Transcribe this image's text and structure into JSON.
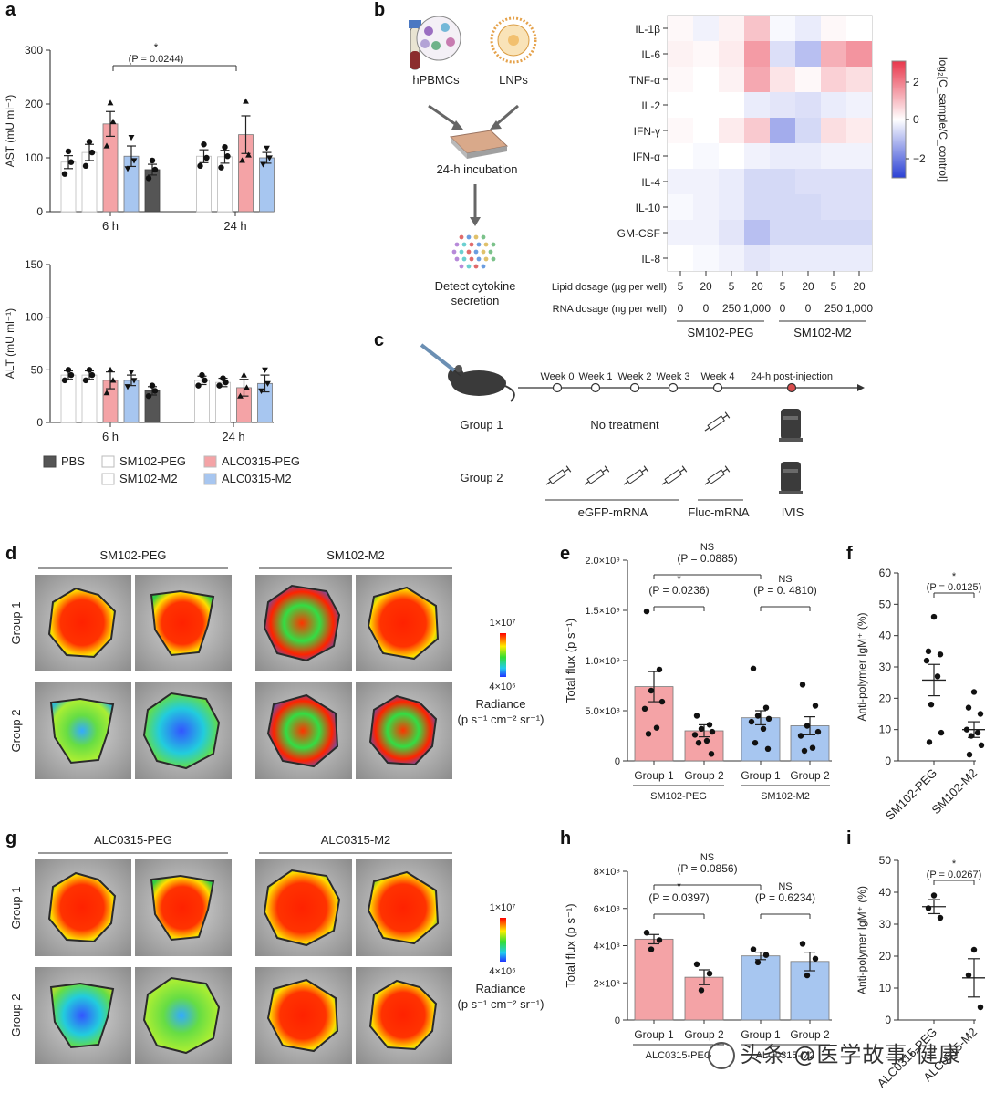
{
  "panel_labels": [
    "a",
    "b",
    "c",
    "d",
    "e",
    "f",
    "g",
    "h",
    "i"
  ],
  "colors": {
    "PBS": "#555555",
    "SM102": "#ffffff",
    "ALC0315-PEG": "#f4a3a6",
    "ALC0315-M2": "#a7c6f0",
    "heat_pos": "#e8364b",
    "heat_neg": "#2a3fd4"
  },
  "panel_a": {
    "legend": [
      {
        "name": "PBS",
        "color": "#555555"
      },
      {
        "name": "SM102-PEG",
        "color": "#ffffff"
      },
      {
        "name": "ALC0315-PEG",
        "color": "#f4a3a6"
      },
      {
        "name": "SM102-M2",
        "color": "#ffffff"
      },
      {
        "name": "ALC0315-M2",
        "color": "#a7c6f0"
      }
    ]
  },
  "chart_data": [
    {
      "id": "a-ast",
      "type": "bar",
      "ylabel": "AST (mU ml⁻¹)",
      "ylim": [
        0,
        300
      ],
      "yticks": [
        "0",
        "100",
        "200",
        "300"
      ],
      "categories": [
        "6 h",
        "24 h"
      ],
      "annotation": {
        "star": "*",
        "p": "(P = 0.0244)"
      },
      "groups": [
        {
          "label": "6 h",
          "bars": [
            {
              "series": "SM102-PEG",
              "value": 92,
              "err": 12,
              "points": [
                70,
                92,
                112
              ]
            },
            {
              "series": "SM102-M2",
              "value": 110,
              "err": 15,
              "points": [
                85,
                110,
                130
              ]
            },
            {
              "series": "ALC0315-PEG",
              "value": 163,
              "err": 23,
              "points": [
                122,
                167,
                202
              ]
            },
            {
              "series": "ALC0315-M2",
              "value": 103,
              "err": 19,
              "points": [
                80,
                95,
                138
              ]
            },
            {
              "series": "PBS",
              "value": 78,
              "err": 10,
              "points": [
                62,
                78,
                95
              ]
            }
          ]
        },
        {
          "label": "24 h",
          "bars": [
            {
              "series": "SM102-PEG",
              "value": 103,
              "err": 12,
              "points": [
                85,
                100,
                125
              ]
            },
            {
              "series": "SM102-M2",
              "value": 102,
              "err": 12,
              "points": [
                82,
                103,
                120
              ]
            },
            {
              "series": "ALC0315-PEG",
              "value": 143,
              "err": 35,
              "points": [
                95,
                105,
                205
              ]
            },
            {
              "series": "ALC0315-M2",
              "value": 100,
              "err": 10,
              "points": [
                88,
                100,
                118
              ]
            }
          ]
        }
      ]
    },
    {
      "id": "a-alt",
      "type": "bar",
      "ylabel": "ALT (mU ml⁻¹)",
      "ylim": [
        0,
        150
      ],
      "yticks": [
        "0",
        "50",
        "100",
        "150"
      ],
      "categories": [
        "6 h",
        "24 h"
      ],
      "groups": [
        {
          "label": "6 h",
          "bars": [
            {
              "series": "SM102-PEG",
              "value": 45,
              "err": 4,
              "points": [
                40,
                45,
                50
              ]
            },
            {
              "series": "SM102-M2",
              "value": 45,
              "err": 4,
              "points": [
                40,
                45,
                50
              ]
            },
            {
              "series": "ALC0315-PEG",
              "value": 40,
              "err": 8,
              "points": [
                28,
                40,
                50
              ]
            },
            {
              "series": "ALC0315-M2",
              "value": 40,
              "err": 5,
              "points": [
                34,
                40,
                48
              ]
            },
            {
              "series": "PBS",
              "value": 30,
              "err": 4,
              "points": [
                25,
                30,
                35
              ]
            }
          ]
        },
        {
          "label": "24 h",
          "bars": [
            {
              "series": "SM102-PEG",
              "value": 40,
              "err": 4,
              "points": [
                35,
                40,
                45
              ]
            },
            {
              "series": "SM102-M2",
              "value": 38,
              "err": 4,
              "points": [
                35,
                38,
                42
              ]
            },
            {
              "series": "ALC0315-PEG",
              "value": 33,
              "err": 8,
              "points": [
                25,
                33,
                45
              ]
            },
            {
              "series": "ALC0315-M2",
              "value": 37,
              "err": 8,
              "points": [
                30,
                37,
                50
              ]
            }
          ]
        }
      ]
    },
    {
      "id": "b-heatmap",
      "type": "heatmap",
      "rows": [
        "IL-1β",
        "IL-6",
        "TNF-α",
        "IL-2",
        "IFN-γ",
        "IFN-α",
        "IL-4",
        "IL-10",
        "GM-CSF",
        "IL-8"
      ],
      "lipid_label": "Lipid dosage (µg per well)",
      "rna_label": "RNA dosage (ng per well)",
      "lipid_dosage": [
        "5",
        "20",
        "5",
        "20",
        "5",
        "20",
        "5",
        "20"
      ],
      "rna_dosage": [
        "0",
        "0",
        "250",
        "1,000",
        "0",
        "0",
        "250",
        "1,000"
      ],
      "groups": [
        "SM102-PEG",
        "SM102-M2"
      ],
      "colorbar_ticks": [
        "2",
        "0",
        "−2"
      ],
      "colorbar_label": "log₂[C_sample/C_control]",
      "values": [
        [
          0.1,
          -0.2,
          0.2,
          0.9,
          -0.1,
          -0.3,
          0.1,
          0.0
        ],
        [
          0.2,
          0.1,
          0.3,
          1.5,
          -0.5,
          -1.0,
          1.2,
          1.6
        ],
        [
          0.1,
          0.0,
          0.2,
          1.3,
          0.4,
          0.1,
          0.7,
          0.5
        ],
        [
          0.0,
          0.0,
          0.0,
          -0.3,
          -0.4,
          -0.5,
          -0.3,
          -0.2
        ],
        [
          0.1,
          0.0,
          0.3,
          0.8,
          -1.3,
          -0.6,
          0.5,
          0.3
        ],
        [
          0.0,
          -0.1,
          0.0,
          -0.2,
          -0.3,
          -0.3,
          -0.2,
          -0.2
        ],
        [
          -0.2,
          -0.2,
          -0.3,
          -0.6,
          -0.6,
          -0.5,
          -0.5,
          -0.5
        ],
        [
          -0.1,
          -0.2,
          -0.3,
          -0.6,
          -0.6,
          -0.6,
          -0.5,
          -0.5
        ],
        [
          -0.2,
          -0.2,
          -0.4,
          -1.0,
          -0.6,
          -0.6,
          -0.6,
          -0.6
        ],
        [
          0.0,
          -0.1,
          -0.2,
          -0.4,
          -0.3,
          -0.3,
          -0.3,
          -0.3
        ]
      ]
    },
    {
      "id": "e",
      "type": "bar",
      "ylabel": "Total flux (p s⁻¹)",
      "ylim": [
        0,
        2000000000.0
      ],
      "yticks": [
        "0",
        "5.0×10⁸",
        "1.0×10⁹",
        "1.5×10⁹",
        "2.0×10⁹"
      ],
      "categories": [
        "Group 1",
        "Group 2",
        "Group 1",
        "Group 2"
      ],
      "subgroups": [
        "SM102-PEG",
        "SM102-M2"
      ],
      "bars": [
        {
          "value": 740000000.0,
          "err": 150000000.0,
          "color": "#f4a3a6",
          "points": [
            1490000000.0,
            910000000.0,
            700000000.0,
            590000000.0,
            520000000.0,
            330000000.0,
            270000000.0
          ]
        },
        {
          "value": 300000000.0,
          "err": 60000000.0,
          "color": "#f4a3a6",
          "points": [
            450000000.0,
            360000000.0,
            320000000.0,
            290000000.0,
            260000000.0,
            200000000.0,
            180000000.0,
            70000000.0
          ]
        },
        {
          "value": 430000000.0,
          "err": 70000000.0,
          "color": "#a7c6f0",
          "points": [
            920000000.0,
            530000000.0,
            450000000.0,
            420000000.0,
            390000000.0,
            320000000.0,
            180000000.0,
            120000000.0
          ]
        },
        {
          "value": 350000000.0,
          "err": 90000000.0,
          "color": "#a7c6f0",
          "points": [
            760000000.0,
            550000000.0,
            350000000.0,
            290000000.0,
            250000000.0,
            130000000.0,
            100000000.0
          ]
        }
      ],
      "annotations": [
        {
          "star": "*",
          "p": "(P = 0.0236)"
        },
        {
          "star": "NS",
          "p": "(P = 0. 4810)"
        },
        {
          "star": "NS",
          "p": "(P = 0.0885)"
        }
      ]
    },
    {
      "id": "f",
      "type": "scatter",
      "ylabel": "Anti-polymer IgM⁺ (%)",
      "ylim": [
        0,
        60
      ],
      "yticks": [
        "0",
        "10",
        "20",
        "30",
        "40",
        "50",
        "60"
      ],
      "categories": [
        "SM102-PEG",
        "SM102-M2"
      ],
      "means": [
        25.8,
        10.0
      ],
      "errs": [
        5.0,
        2.5
      ],
      "points": [
        [
          46,
          35,
          34,
          32,
          27,
          18,
          9,
          6
        ],
        [
          22,
          17,
          15,
          10,
          9,
          8,
          5,
          2
        ]
      ],
      "annotation": {
        "star": "*",
        "p": "(P = 0.0125)"
      }
    },
    {
      "id": "h",
      "type": "bar",
      "ylabel": "Total flux  (p s⁻¹)",
      "ylim": [
        0,
        800000000.0
      ],
      "yticks": [
        "0",
        "2×10⁸",
        "4×10⁸",
        "6×10⁸",
        "8×10⁸"
      ],
      "categories": [
        "Group 1",
        "Group 2",
        "Group 1",
        "Group 2"
      ],
      "subgroups": [
        "ALC0315-PEG",
        "ALC0315-M2"
      ],
      "bars": [
        {
          "value": 435000000.0,
          "err": 25000000.0,
          "color": "#f4a3a6",
          "points": [
            470000000.0,
            430000000.0,
            380000000.0
          ]
        },
        {
          "value": 230000000.0,
          "err": 40000000.0,
          "color": "#f4a3a6",
          "points": [
            300000000.0,
            250000000.0,
            160000000.0
          ]
        },
        {
          "value": 345000000.0,
          "err": 20000000.0,
          "color": "#a7c6f0",
          "points": [
            380000000.0,
            350000000.0,
            310000000.0
          ]
        },
        {
          "value": 315000000.0,
          "err": 50000000.0,
          "color": "#a7c6f0",
          "points": [
            410000000.0,
            330000000.0,
            240000000.0
          ]
        }
      ],
      "annotations": [
        {
          "star": "*",
          "p": "(P = 0.0397)"
        },
        {
          "star": "NS",
          "p": "(P = 0.6234)"
        },
        {
          "star": "NS",
          "p": "(P = 0.0856)"
        }
      ]
    },
    {
      "id": "i",
      "type": "scatter",
      "ylabel": "Anti-polymer IgM⁺ (%)",
      "ylim": [
        0,
        50
      ],
      "yticks": [
        "0",
        "10",
        "20",
        "30",
        "40",
        "50"
      ],
      "categories": [
        "ALC0315-PEG",
        "ALC0315-M2"
      ],
      "means": [
        35.5,
        13.2
      ],
      "errs": [
        2.2,
        6.0
      ],
      "points": [
        [
          39,
          35,
          32
        ],
        [
          22,
          14,
          4
        ]
      ],
      "annotation": {
        "star": "*",
        "p": "(P = 0.0267)"
      }
    }
  ],
  "panel_b": {
    "schematic": {
      "hpbmc": "hPBMCs",
      "lnp": "LNPs",
      "incubation": "24-h incubation",
      "detect": "Detect cytokine",
      "detect2": "secretion"
    }
  },
  "panel_c": {
    "weeks": [
      "Week 0",
      "Week 1",
      "Week 2",
      "Week 3",
      "Week 4",
      "24-h post-injection"
    ],
    "group1": "Group 1",
    "group2": "Group 2",
    "no_treatment": "No treatment",
    "egfp": "eGFP-mRNA",
    "fluc": "Fluc-mRNA",
    "ivis": "IVIS"
  },
  "panel_d": {
    "headers": [
      "SM102-PEG",
      "SM102-M2"
    ],
    "rows": [
      "Group 1",
      "Group 2"
    ],
    "scale_max": "1×10⁷",
    "scale_min": "4×10⁶",
    "radiance": "Radiance",
    "radiance_units": "(p s⁻¹ cm⁻² sr⁻¹)"
  },
  "panel_g": {
    "headers": [
      "ALC0315-PEG",
      "ALC0315-M2"
    ],
    "rows": [
      "Group 1",
      "Group 2"
    ],
    "scale_max": "1×10⁷",
    "scale_min": "4×10⁶",
    "radiance": "Radiance",
    "radiance_units": "(p s⁻¹ cm⁻² sr⁻¹)"
  },
  "watermark": "头条 @医学故事·健康"
}
